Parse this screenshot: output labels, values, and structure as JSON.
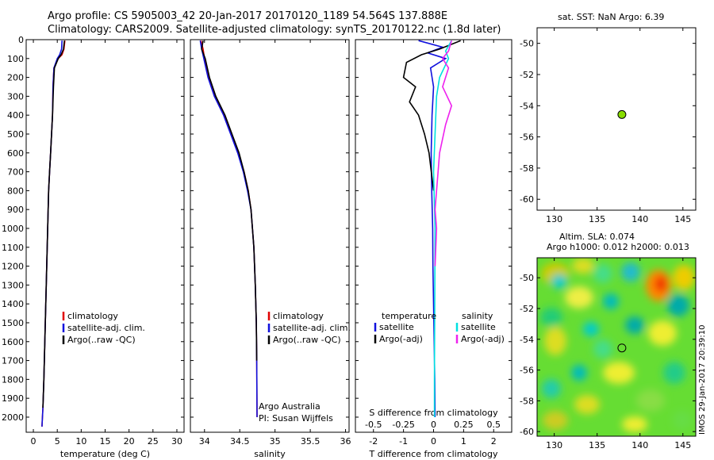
{
  "header": {
    "line1": "Argo profile: CS 5905003_42 20-Jan-2017 20170120_1189 54.564S 137.888E",
    "line2": "Climatology: CARS2009. Satellite-adjusted climatology: synTS_20170122.nc (1.8d later)"
  },
  "colors": {
    "climatology": "#e00000",
    "satellite": "#1010dd",
    "argo": "#000000",
    "satellite_salinity": "#00e0e0",
    "argo_salinity": "#ee22ee",
    "marker": "#88dd00"
  },
  "panels": {
    "sst_title": "sat. SST: NaN Argo: 6.39",
    "sla_title1": "Altim. SLA: 0.074",
    "sla_title2": "Argo h1000: 0.012 h2000: 0.013",
    "credit": "IMOS 29-Jan-2017 20:39:10"
  },
  "legends": {
    "temp": [
      "climatology",
      "satellite-adj. clim.",
      "Argo(..raw -QC)"
    ],
    "sal": [
      "climatology",
      "satellite-adj. clim.",
      "Argo(..raw -QC)"
    ],
    "diff_t_head": "temperature",
    "diff_s_head": "salinity",
    "diff_t": [
      "satellite",
      "Argo(-adj)"
    ],
    "diff_s": [
      "satellite",
      "Argo(-adj)"
    ],
    "pi1": "Argo Australia",
    "pi2": "PI: Susan Wijffels"
  },
  "chart_data": [
    {
      "type": "line",
      "name": "temperature profile",
      "xlabel": "temperature (deg C)",
      "xlim": [
        -1.5,
        31.5
      ],
      "ylim": [
        0,
        2080
      ],
      "y_reversed": true,
      "xticks": [
        0,
        5,
        10,
        15,
        20,
        25,
        30
      ],
      "yticks": [
        0,
        100,
        200,
        300,
        400,
        500,
        600,
        700,
        800,
        900,
        1000,
        1100,
        1200,
        1300,
        1400,
        1500,
        1600,
        1700,
        1800,
        1900,
        2000
      ],
      "series": [
        {
          "name": "climatology",
          "x": [
            6.6,
            6.4,
            6.0,
            5.2,
            4.3,
            4.1,
            4.0,
            3.8,
            3.6,
            3.4,
            3.2,
            3.0,
            2.8,
            2.6,
            2.4,
            2.2,
            2.0,
            1.8
          ],
          "y": [
            5,
            50,
            80,
            100,
            150,
            250,
            400,
            500,
            600,
            700,
            800,
            1000,
            1200,
            1400,
            1600,
            1800,
            1950,
            2050
          ]
        },
        {
          "name": "satellite-adj. clim.",
          "x": [
            6.0,
            5.9,
            5.5,
            5.0,
            4.3,
            4.1,
            4.0,
            3.8,
            3.6,
            3.4,
            3.2,
            3.0,
            2.8,
            2.6,
            2.4,
            2.2,
            2.0,
            1.8
          ],
          "y": [
            5,
            50,
            80,
            100,
            150,
            250,
            400,
            500,
            600,
            700,
            800,
            1000,
            1200,
            1400,
            1600,
            1800,
            1950,
            2050
          ]
        },
        {
          "name": "Argo(..raw -QC)",
          "x": [
            6.5,
            6.3,
            5.8,
            5.2,
            4.4,
            4.2,
            4.0,
            3.8,
            3.6,
            3.4,
            3.2,
            3.0,
            2.8,
            2.6,
            2.4,
            2.2,
            2.0
          ],
          "y": [
            5,
            50,
            80,
            100,
            150,
            250,
            400,
            500,
            600,
            700,
            800,
            1000,
            1200,
            1400,
            1600,
            1800,
            1950
          ]
        }
      ]
    },
    {
      "type": "line",
      "name": "salinity profile",
      "xlabel": "salinity",
      "xlim": [
        33.8,
        36.05
      ],
      "ylim": [
        0,
        2080
      ],
      "y_reversed": true,
      "xticks": [
        34,
        34.5,
        35,
        35.5,
        36
      ],
      "xticklabels": [
        "34",
        "34.5",
        "35",
        "35.5",
        "36"
      ],
      "series": [
        {
          "name": "climatology",
          "x": [
            33.95,
            33.98,
            34.0,
            34.06,
            34.15,
            34.28,
            34.38,
            34.48,
            34.56,
            34.62,
            34.66,
            34.7,
            34.72,
            34.735,
            34.74,
            34.745
          ],
          "y": [
            5,
            50,
            100,
            200,
            300,
            400,
            500,
            600,
            700,
            800,
            900,
            1100,
            1300,
            1500,
            1700,
            2000
          ]
        },
        {
          "name": "satellite-adj. clim.",
          "x": [
            33.94,
            33.96,
            33.99,
            34.05,
            34.14,
            34.27,
            34.37,
            34.47,
            34.55,
            34.61,
            34.66,
            34.7,
            34.72,
            34.735,
            34.74,
            34.745
          ],
          "y": [
            5,
            50,
            100,
            200,
            300,
            400,
            500,
            600,
            700,
            800,
            900,
            1100,
            1300,
            1500,
            1700,
            2000
          ]
        },
        {
          "name": "Argo(..raw -QC)",
          "x": [
            33.98,
            33.96,
            34.01,
            34.07,
            34.16,
            34.29,
            34.39,
            34.49,
            34.56,
            34.62,
            34.66,
            34.7,
            34.72,
            34.735,
            34.74
          ],
          "y": [
            5,
            50,
            100,
            200,
            300,
            400,
            500,
            600,
            700,
            800,
            900,
            1100,
            1300,
            1500,
            1700
          ]
        }
      ]
    },
    {
      "type": "line",
      "name": "difference from climatology",
      "xlabel": "T difference from climatology",
      "xlabel_top": "S difference from climatology",
      "xlim": [
        -2.6,
        2.6
      ],
      "ylim": [
        0,
        2080
      ],
      "y_reversed": true,
      "xticks": [
        -2,
        -1,
        0,
        1,
        2
      ],
      "xticks_top": [
        -0.5,
        -0.25,
        0,
        0.25,
        0.5
      ],
      "xticks_top_at": [
        -2,
        -1,
        0,
        1,
        2
      ],
      "series": [
        {
          "name": "temperature satellite",
          "x": [
            -0.5,
            0.3,
            -0.2,
            0.4,
            -0.1,
            0.0,
            -0.05,
            -0.08,
            -0.06,
            -0.03,
            -0.02,
            0.0,
            0.02,
            0.04,
            0.05
          ],
          "y": [
            5,
            40,
            70,
            100,
            150,
            250,
            400,
            600,
            800,
            1000,
            1200,
            1400,
            1600,
            1800,
            2000
          ]
        },
        {
          "name": "temperature Argo(-adj)",
          "x": [
            0.9,
            0.2,
            -0.4,
            -0.9,
            -1.0,
            -0.6,
            -0.8,
            -0.5,
            -0.3,
            -0.15,
            0.0
          ],
          "y": [
            5,
            50,
            80,
            120,
            200,
            250,
            330,
            400,
            500,
            600,
            800
          ]
        },
        {
          "name": "salinity satellite",
          "x": [
            0.6,
            0.4,
            0.5,
            0.2,
            0.1,
            0.05,
            0.0,
            0.05,
            0.04,
            0.03,
            0.03
          ],
          "y": [
            5,
            60,
            100,
            200,
            300,
            500,
            700,
            1000,
            1400,
            1800,
            2000
          ]
        },
        {
          "name": "salinity Argo(-adj)",
          "x": [
            0.6,
            0.5,
            0.3,
            0.5,
            0.3,
            0.6,
            0.4,
            0.2,
            0.1,
            0.05,
            0.1,
            0.05
          ],
          "y": [
            5,
            60,
            100,
            150,
            250,
            350,
            450,
            600,
            800,
            900,
            1000,
            1200
          ]
        }
      ]
    },
    {
      "type": "scatter",
      "name": "satellite SST map",
      "xlim": [
        128,
        146.5
      ],
      "ylim": [
        -60.7,
        -49
      ],
      "xticks": [
        130,
        135,
        140,
        145
      ],
      "yticks": [
        -50,
        -52,
        -54,
        -56,
        -58,
        -60
      ],
      "points": [
        {
          "lon": 137.888,
          "lat": -54.564
        }
      ]
    },
    {
      "type": "heatmap",
      "name": "altimetry SLA map",
      "xlim": [
        128,
        146.5
      ],
      "ylim": [
        -60.3,
        -48.7
      ],
      "xticks": [
        130,
        135,
        140,
        145
      ],
      "yticks": [
        -50,
        -52,
        -54,
        -56,
        -58,
        -60
      ],
      "points": [
        {
          "lon": 137.888,
          "lat": -54.564
        }
      ]
    }
  ]
}
